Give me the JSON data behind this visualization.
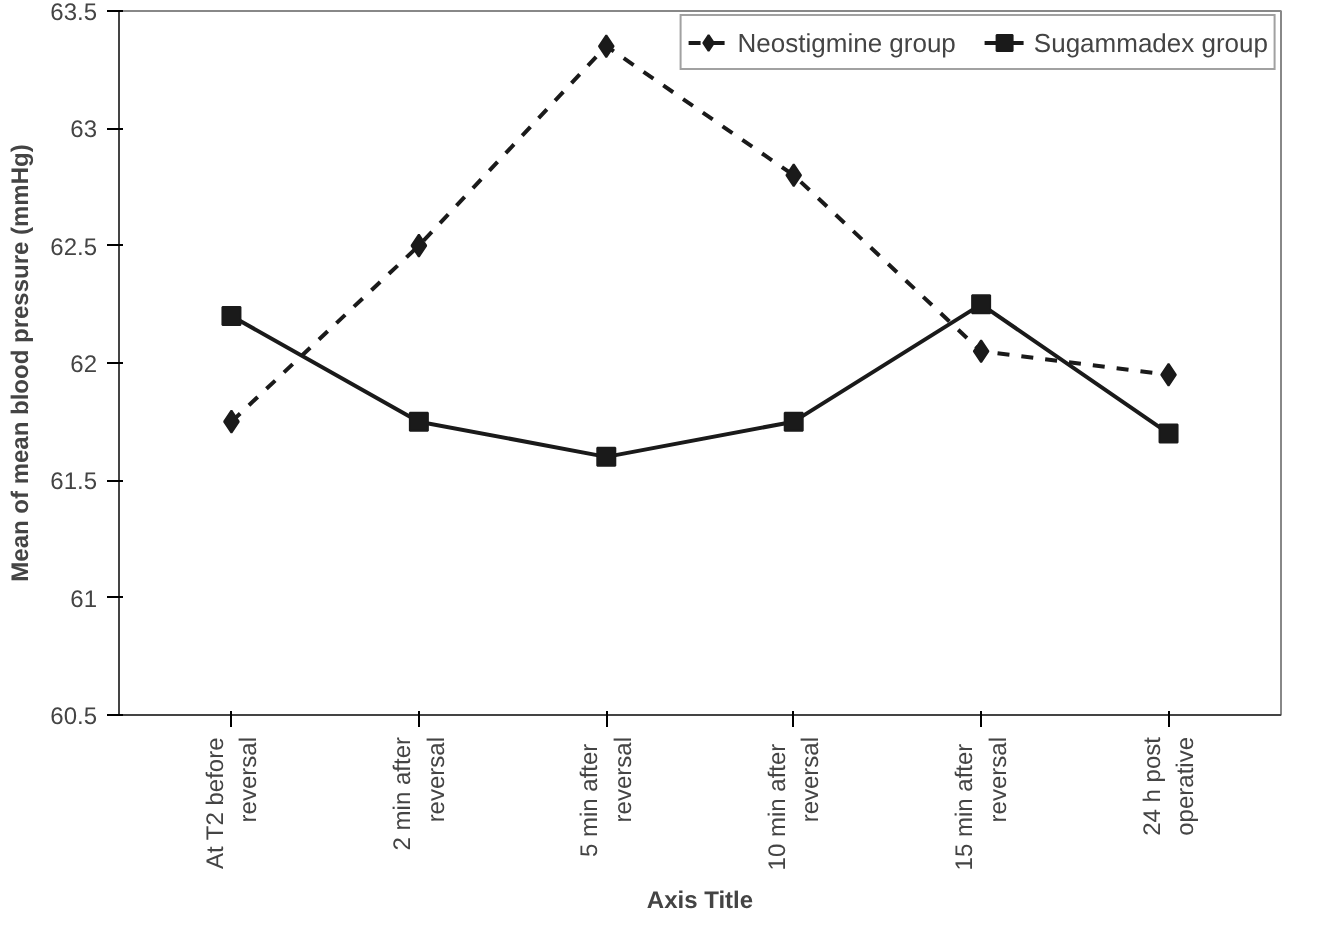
{
  "chart_data": {
    "type": "line",
    "xlabel": "Axis Title",
    "ylabel": "Mean of mean blood pressure (mmHg)",
    "categories": [
      "At T2 before\nreversal",
      "2 min after\nreversal",
      "5  min after\nreversal",
      "10  min after\nreversal",
      "15  min after\nreversal",
      "24 h post\noperative"
    ],
    "series": [
      {
        "name": "Neostigmine group",
        "color": "#1a1a1a",
        "values": [
          61.75,
          62.5,
          63.35,
          62.8,
          62.05,
          61.95
        ],
        "line_style": "dashed",
        "marker": "diamond"
      },
      {
        "name": "Sugammadex group",
        "color": "#1a1a1a",
        "values": [
          62.2,
          61.75,
          61.6,
          61.75,
          62.25,
          61.7
        ],
        "line_style": "solid",
        "marker": "square"
      }
    ],
    "ylim": [
      60.5,
      63.5
    ],
    "yticks": [
      60.5,
      61,
      61.5,
      62,
      62.5,
      63,
      63.5
    ],
    "grid": false,
    "legend": "top right"
  }
}
